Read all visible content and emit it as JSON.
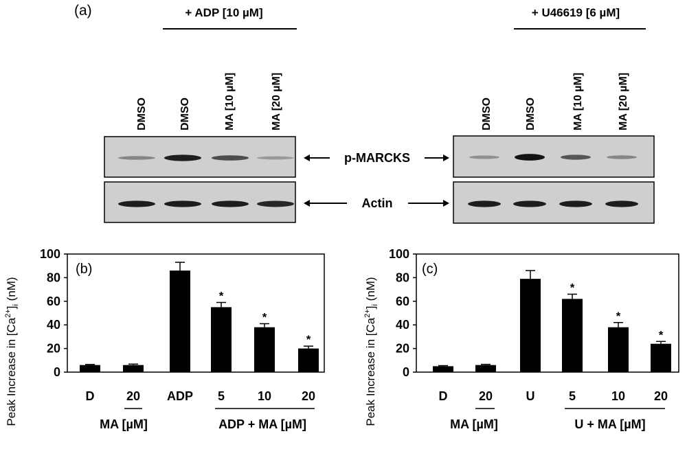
{
  "blot": {
    "panel_label": "(a)",
    "left_treatment": "+ ADP [10 µM]",
    "right_treatment": "+ U46619 [6 µM]",
    "left_lanes": [
      "DMSO",
      "DMSO",
      "MA [10 µM]",
      "MA [20 µM]"
    ],
    "right_lanes": [
      "DMSO",
      "DMSO",
      "MA [10 µM]",
      "MA [20 µM]"
    ],
    "row_labels": [
      "p-MARCKS",
      "Actin"
    ],
    "left_pmarcks_intensity": [
      0.35,
      0.9,
      0.65,
      0.25
    ],
    "right_pmarcks_intensity": [
      0.3,
      0.95,
      0.6,
      0.35
    ],
    "left_actin_intensity": [
      0.9,
      0.9,
      0.9,
      0.85
    ],
    "right_actin_intensity": [
      0.9,
      0.9,
      0.9,
      0.9
    ]
  },
  "chart_data": [
    {
      "type": "bar",
      "panel_label": "(b)",
      "categories": [
        "D",
        "20",
        "ADP",
        "5",
        "10",
        "20"
      ],
      "values": [
        6,
        6,
        86,
        55,
        38,
        20
      ],
      "errors": [
        0.5,
        0.8,
        7,
        4,
        3,
        2
      ],
      "significance": [
        "",
        "",
        "",
        "*",
        "*",
        "*"
      ],
      "ylabel_text": "Peak Increase in [Ca",
      "ylabel_sup": "2+",
      "ylabel_sub": "i",
      "ylabel_tail": " (nM)",
      "ylim": [
        0,
        100
      ],
      "yticks": [
        "0",
        "20",
        "40",
        "60",
        "80",
        "100"
      ],
      "group_label_1": "MA [µM]",
      "group_label_2": "ADP + MA [µM]"
    },
    {
      "type": "bar",
      "panel_label": "(c)",
      "categories": [
        "D",
        "20",
        "U",
        "5",
        "10",
        "20"
      ],
      "values": [
        5,
        6,
        79,
        62,
        38,
        24
      ],
      "errors": [
        0.5,
        0.6,
        7,
        4,
        4,
        2
      ],
      "significance": [
        "",
        "",
        "",
        "*",
        "*",
        "*"
      ],
      "ylabel_text": "Peak Increase in [Ca",
      "ylabel_sup": "2+",
      "ylabel_sub": "i",
      "ylabel_tail": " (nM)",
      "ylim": [
        0,
        100
      ],
      "yticks": [
        "0",
        "20",
        "40",
        "60",
        "80",
        "100"
      ],
      "group_label_1": "MA [µM]",
      "group_label_2": "U + MA [µM]"
    }
  ]
}
